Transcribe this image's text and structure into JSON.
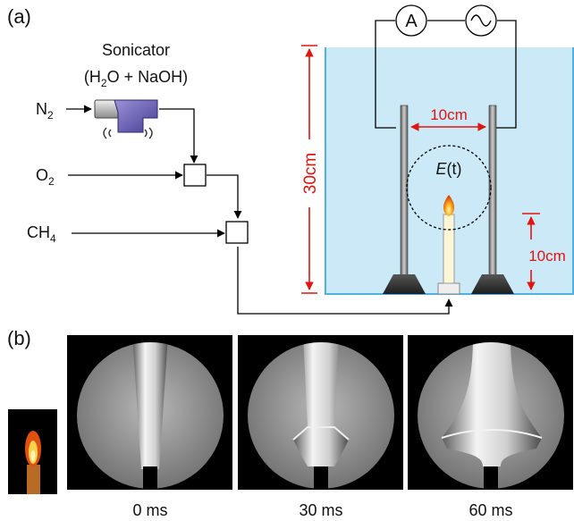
{
  "panels": {
    "a": {
      "label": "(a)"
    },
    "b": {
      "label": "(b)"
    }
  },
  "sonicator": {
    "title": "Sonicator",
    "subtitle_pre": "(H",
    "subtitle_sub": "2",
    "subtitle_post": "O + NaOH)"
  },
  "gases": [
    {
      "main": "N",
      "sub": "2"
    },
    {
      "main": "O",
      "sub": "2"
    },
    {
      "main": "CH",
      "sub": "4"
    }
  ],
  "instruments": {
    "ammeter": "A",
    "source": "∿"
  },
  "dimensions": {
    "height": "30cm",
    "gap": "10cm",
    "burner": "10cm"
  },
  "field": {
    "symbol": "E",
    "arg": "(t)"
  },
  "frames": [
    {
      "time": "0 ms"
    },
    {
      "time": "30 ms"
    },
    {
      "time": "60 ms"
    }
  ],
  "colors": {
    "water": "#cbe9f6",
    "tank_edge": "#4fb0e6",
    "dimension": "#e3140f",
    "sonicator_purple": "#6a5fb5"
  }
}
